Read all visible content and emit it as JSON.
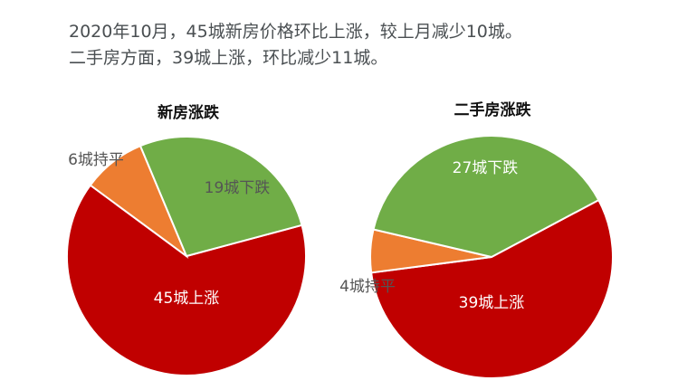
{
  "headline": {
    "line1": "2020年10月，45城新房价格环比上涨，较上月减少10城。",
    "line2": "二手房方面，39城上涨，环比减少11城。"
  },
  "colors": {
    "up": "#c00000",
    "flat": "#ed7d31",
    "down": "#70ad47",
    "outside_label": "#555555",
    "inside_label": "#ffffff"
  },
  "chart_data": [
    {
      "type": "pie",
      "title": "新房涨跌",
      "slices": [
        {
          "category": "上涨",
          "value": 45,
          "label": "45城上涨",
          "color": "#c00000"
        },
        {
          "category": "持平",
          "value": 6,
          "label": "6城持平",
          "color": "#ed7d31"
        },
        {
          "category": "下跌",
          "value": 19,
          "label": "19城下跌",
          "color": "#70ad47"
        }
      ]
    },
    {
      "type": "pie",
      "title": "二手房涨跌",
      "slices": [
        {
          "category": "上涨",
          "value": 39,
          "label": "39城上涨",
          "color": "#c00000"
        },
        {
          "category": "持平",
          "value": 4,
          "label": "4城持平",
          "color": "#ed7d31"
        },
        {
          "category": "下跌",
          "value": 27,
          "label": "27城下跌",
          "color": "#70ad47"
        }
      ]
    }
  ]
}
